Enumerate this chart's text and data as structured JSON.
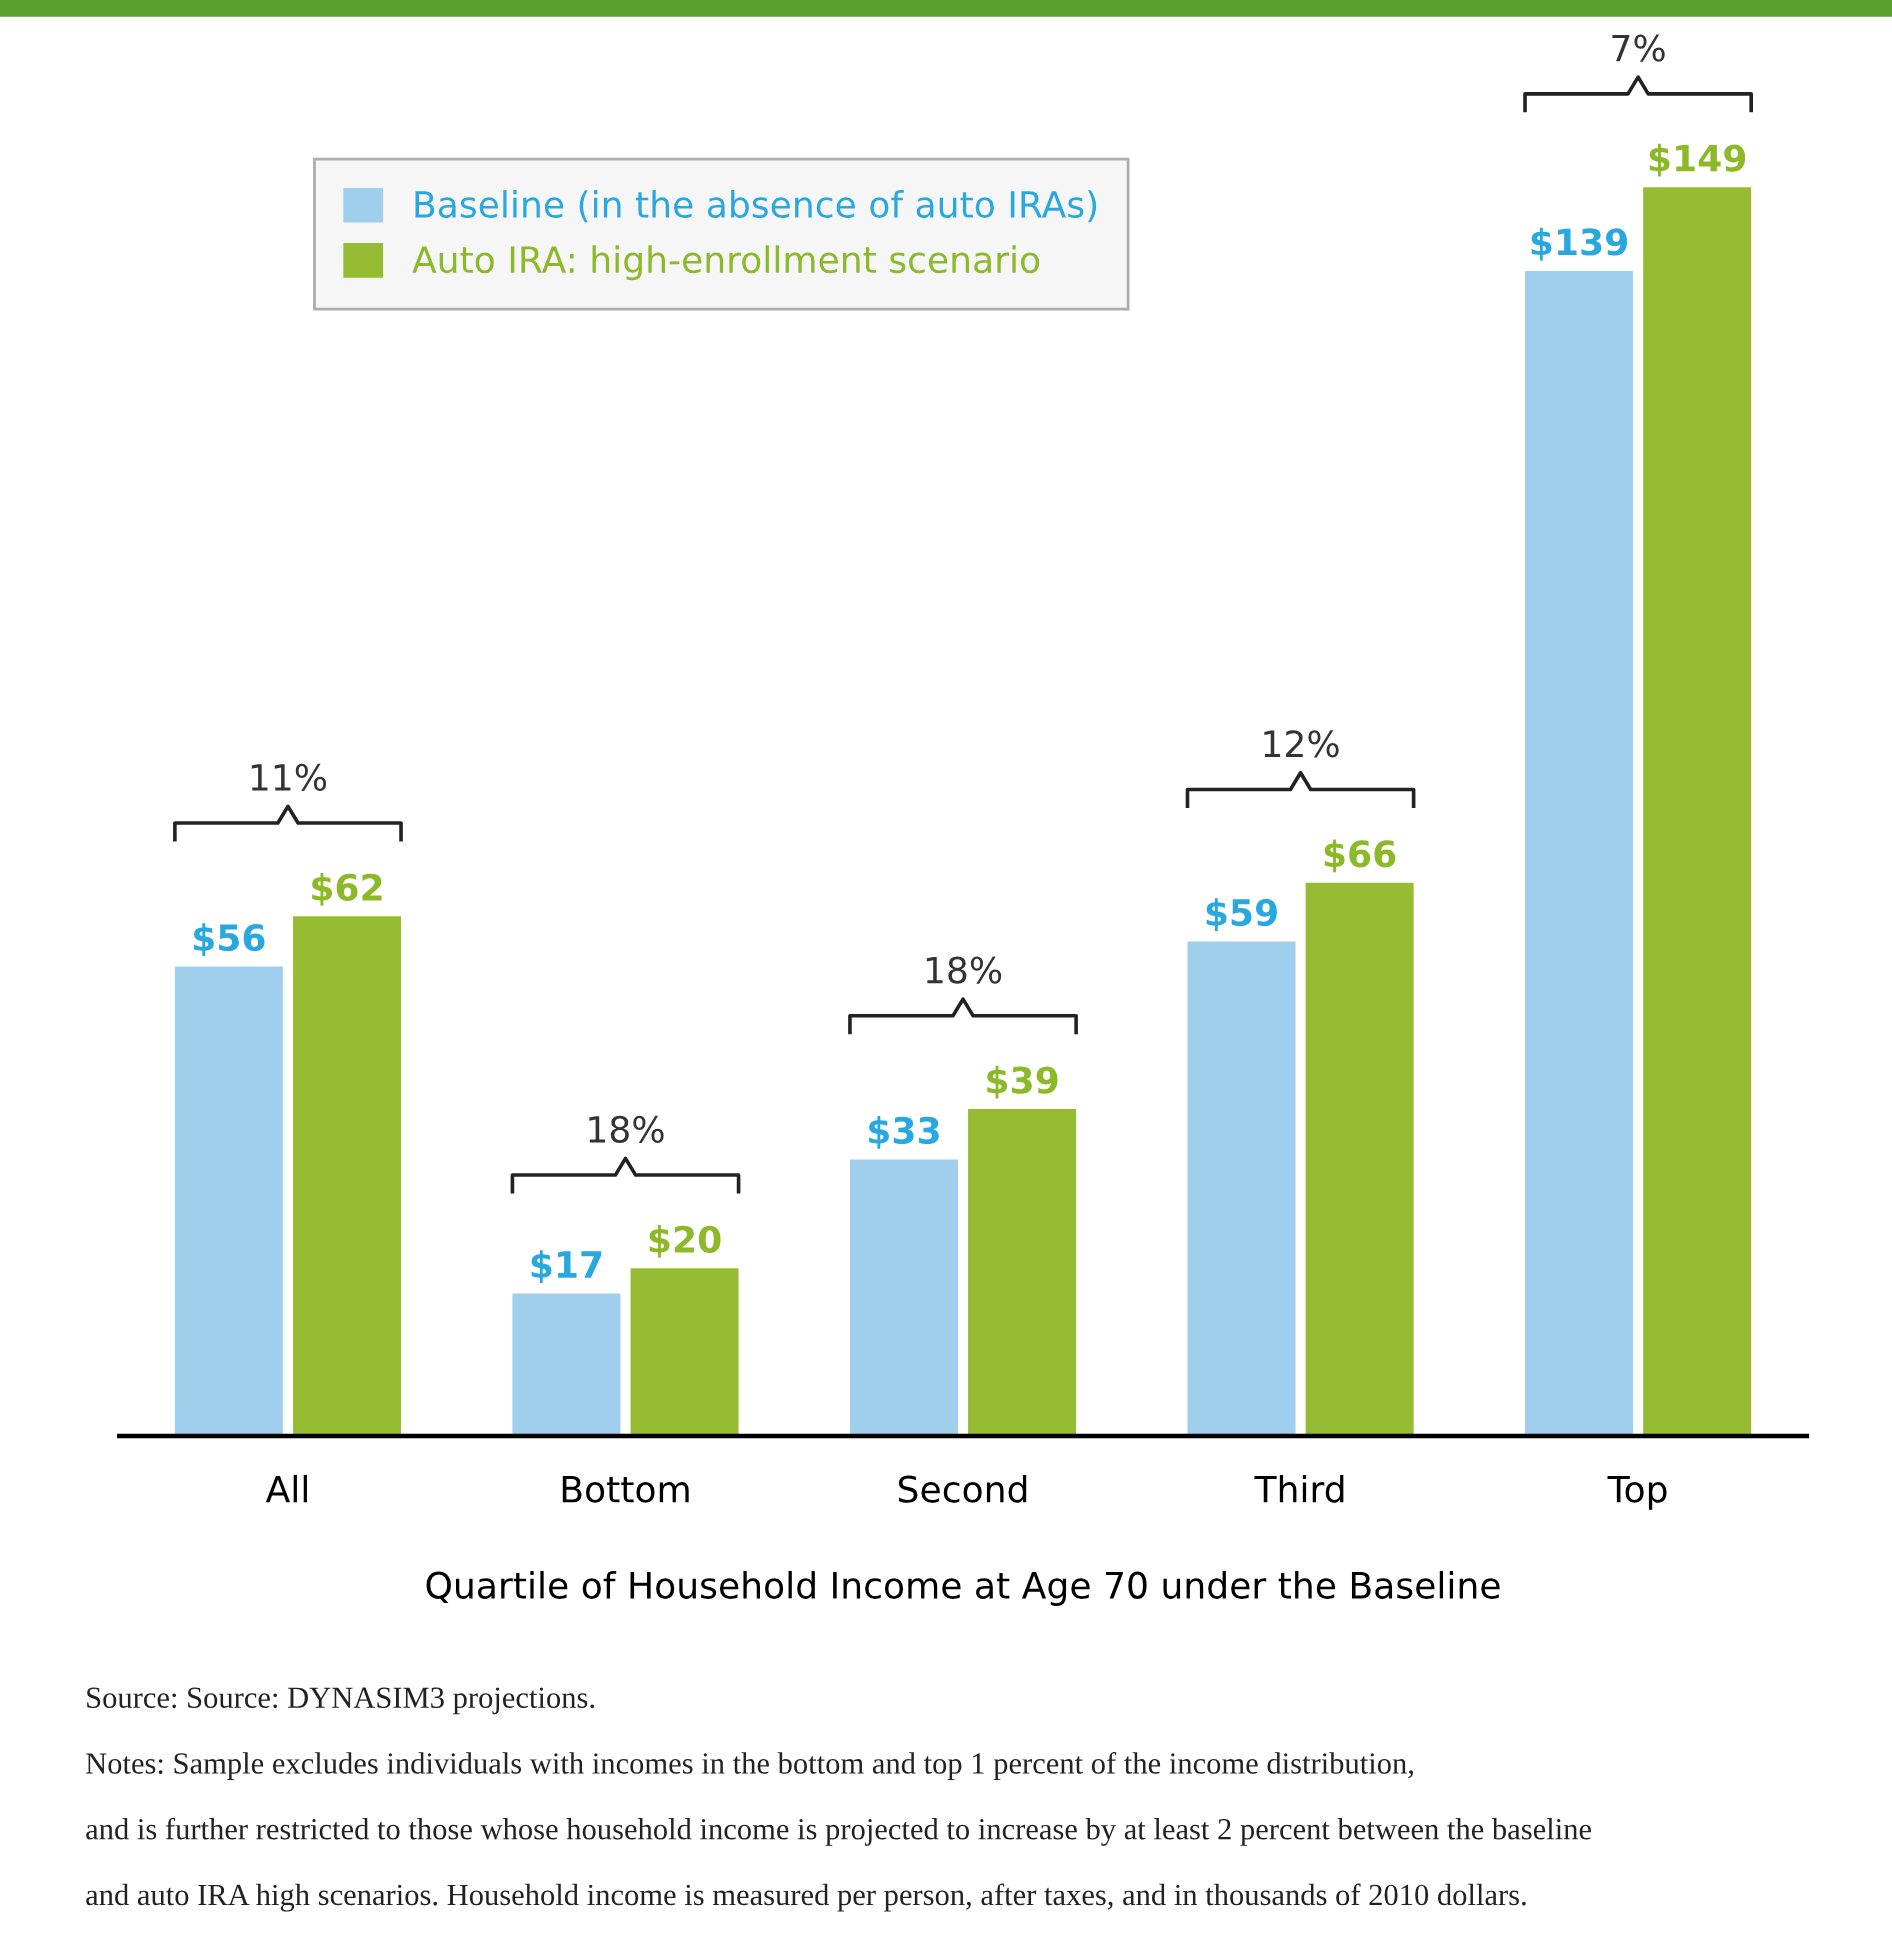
{
  "chart_data": {
    "type": "bar",
    "categories": [
      "All",
      "Bottom",
      "Second",
      "Third",
      "Top"
    ],
    "series": [
      {
        "name": "Baseline (in the absence of auto IRAs)",
        "color": "#a0cfee",
        "values": [
          56,
          17,
          33,
          59,
          139
        ],
        "value_labels": [
          "$56",
          "$17",
          "$33",
          "$59",
          "$139"
        ]
      },
      {
        "name": "Auto IRA: high-enrollment scenario",
        "color": "#95bc33",
        "values": [
          62,
          20,
          39,
          66,
          149
        ],
        "value_labels": [
          "$62",
          "$20",
          "$39",
          "$66",
          "$149"
        ]
      }
    ],
    "xlabel": "Quartile of Household Income at Age 70 under the Baseline",
    "legend": "top left",
    "grid": false,
    "annotations": [
      "11%",
      "18%",
      "18%",
      "12%",
      "7%",
      "Source: Source: DYNASIM3 projections.",
      "Notes: Sample excludes individuals with incomes in the bottom and top 1 percent of the income distribution,",
      "and is further restricted to those whose household income is projected to increase by at least 2 percent between the baseline",
      "and auto IRA high scenarios. Household income is measured per person, after taxes, and in thousands of 2010 dollars."
    ]
  }
}
